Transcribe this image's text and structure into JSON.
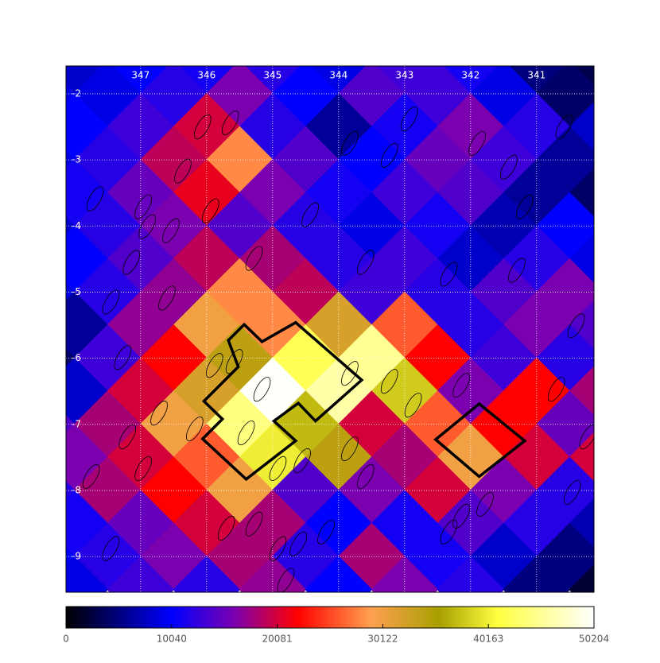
{
  "chart_data": {
    "type": "heatmap",
    "xlim": [
      348.13,
      340.13
    ],
    "ylim": [
      -1.58,
      -9.54
    ],
    "xticks": [
      347,
      346,
      345,
      344,
      343,
      342,
      341
    ],
    "yticks": [
      -2,
      -3,
      -4,
      -5,
      -6,
      -7,
      -8,
      -9
    ],
    "grid": true,
    "colormap": [
      {
        "value": 0,
        "color": "#000000"
      },
      {
        "value": 10040,
        "color": "#0000ff"
      },
      {
        "value": 16000,
        "color": "#7a00b0"
      },
      {
        "value": 22000,
        "color": "#ff0000"
      },
      {
        "value": 29000,
        "color": "#ffa050"
      },
      {
        "value": 35500,
        "color": "#a8a000"
      },
      {
        "value": 41000,
        "color": "#ffff40"
      },
      {
        "value": 50204,
        "color": "#ffffff"
      }
    ],
    "colorbar": {
      "lim": [
        0,
        50204
      ],
      "ticks": [
        0,
        10040,
        20081,
        30122,
        40163,
        50204
      ]
    },
    "cells": [
      {
        "lat": -1.5,
        "lon": [
          348,
          347,
          346,
          345,
          344,
          343,
          342,
          341,
          340
        ],
        "values": [
          8000,
          10000,
          11000,
          12000,
          9000,
          13000,
          11000,
          5000,
          3000
        ]
      },
      {
        "lat": -2,
        "lon": [
          348.5,
          347.5,
          346.5,
          345.5,
          344.5,
          343.5,
          342.5,
          341.5,
          340.5
        ],
        "values": [
          9000,
          9000,
          12000,
          16000,
          10000,
          14000,
          13000,
          9000,
          4000
        ]
      },
      {
        "lat": -2.5,
        "lon": [
          348,
          347,
          346,
          345,
          344,
          343,
          342,
          341,
          340
        ],
        "values": [
          10000,
          13000,
          20000,
          12000,
          6000,
          11000,
          16000,
          12000,
          8000
        ]
      },
      {
        "lat": -3,
        "lon": [
          348.5,
          347.5,
          346.5,
          345.5,
          344.5,
          343.5,
          342.5,
          341.5,
          340.5
        ],
        "values": [
          9000,
          12000,
          19000,
          28000,
          14000,
          10000,
          15000,
          13000,
          6000
        ]
      },
      {
        "lat": -3.5,
        "lon": [
          348,
          347,
          346,
          345,
          344,
          343,
          342,
          341,
          340
        ],
        "values": [
          11000,
          15000,
          21000,
          16000,
          11000,
          13000,
          14000,
          6000,
          4000
        ]
      },
      {
        "lat": -4,
        "lon": [
          348.5,
          347.5,
          346.5,
          345.5,
          344.5,
          343.5,
          342.5,
          341.5,
          340.5
        ],
        "values": [
          8000,
          12000,
          16000,
          14000,
          12000,
          9000,
          11000,
          7000,
          10000
        ]
      },
      {
        "lat": -4.5,
        "lon": [
          348,
          347,
          346,
          345,
          344,
          343,
          342,
          341,
          340
        ],
        "values": [
          10000,
          14000,
          19000,
          18000,
          12000,
          13000,
          8000,
          12000,
          9000
        ]
      },
      {
        "lat": -5,
        "lon": [
          348.5,
          347.5,
          346.5,
          345.5,
          344.5,
          343.5,
          342.5,
          341.5,
          340.5
        ],
        "values": [
          9000,
          12000,
          17000,
          28000,
          19000,
          13000,
          12000,
          14000,
          16000
        ]
      },
      {
        "lat": -5.5,
        "lon": [
          348,
          347,
          346,
          345,
          344,
          343,
          342,
          341,
          340
        ],
        "values": [
          6000,
          17000,
          30000,
          28000,
          32000,
          26000,
          12000,
          16000,
          14000
        ]
      },
      {
        "lat": -6,
        "lon": [
          348.5,
          347.5,
          346.5,
          345.5,
          344.5,
          343.5,
          342.5,
          341.5,
          340.5
        ],
        "values": [
          4000,
          13000,
          22000,
          34000,
          42000,
          45000,
          22000,
          13000,
          12000
        ]
      },
      {
        "lat": -6.5,
        "lon": [
          348,
          347,
          346,
          345,
          344,
          343,
          342,
          341,
          340
        ],
        "values": [
          8000,
          20000,
          32000,
          50000,
          46000,
          38000,
          16000,
          22000,
          18000
        ]
      },
      {
        "lat": -7,
        "lon": [
          348.5,
          347.5,
          346.5,
          345.5,
          344.5,
          343.5,
          342.5,
          341.5,
          340.5
        ],
        "values": [
          14000,
          18000,
          30000,
          44000,
          37000,
          20000,
          26000,
          22000,
          15000
        ]
      },
      {
        "lat": -7.5,
        "lon": [
          348,
          347,
          346,
          345,
          344,
          343,
          342,
          341,
          340
        ],
        "values": [
          16000,
          20000,
          26000,
          40000,
          34000,
          18000,
          30000,
          20000,
          20000
        ]
      },
      {
        "lat": -8,
        "lon": [
          348.5,
          347.5,
          346.5,
          345.5,
          344.5,
          343.5,
          342.5,
          341.5,
          340.5
        ],
        "values": [
          12000,
          18000,
          22000,
          30000,
          14000,
          16000,
          20000,
          16000,
          12000
        ]
      },
      {
        "lat": -8.5,
        "lon": [
          348,
          347,
          346,
          345,
          344,
          343,
          342,
          341,
          340
        ],
        "values": [
          11000,
          15000,
          20000,
          18000,
          10000,
          11000,
          14000,
          12000,
          7000
        ]
      },
      {
        "lat": -9,
        "lon": [
          348.5,
          347.5,
          346.5,
          345.5,
          344.5,
          343.5,
          342.5,
          341.5,
          340.5
        ],
        "values": [
          10000,
          12000,
          16000,
          18000,
          12000,
          18000,
          11000,
          8000,
          5000
        ]
      },
      {
        "lat": -9.5,
        "lon": [
          348,
          347,
          346,
          345,
          344,
          343,
          342,
          341,
          340
        ],
        "values": [
          9000,
          13000,
          12000,
          17000,
          10000,
          16000,
          12000,
          5000,
          2000
        ]
      }
    ],
    "contours": [
      {
        "lon": [
          345.67,
          345.43,
          345.16,
          344.65,
          343.65,
          344.35,
          344.61,
          344.98,
          344.65,
          345.4,
          346.06,
          345.76,
          346.04,
          345.52
        ],
        "lat": [
          -5.73,
          -5.49,
          -5.75,
          -5.46,
          -6.33,
          -6.95,
          -6.68,
          -6.95,
          -7.25,
          -7.83,
          -7.22,
          -6.92,
          -6.65,
          -6.13
        ]
      },
      {
        "lon": [
          341.87,
          341.18,
          341.87,
          342.53
        ],
        "lat": [
          -6.69,
          -7.25,
          -7.79,
          -7.23
        ]
      }
    ],
    "sources": {
      "lon": [
        346.06,
        345.64,
        346.36,
        346.96,
        347.69,
        346.9,
        346.54,
        347.14,
        345.94,
        345.28,
        343.83,
        343.23,
        342.93,
        341.9,
        341.42,
        341.18,
        340.58,
        344.43,
        343.59,
        342.33,
        341.3,
        347.45,
        347.27,
        346.6,
        345.88,
        345.58,
        345.16,
        343.83,
        343.23,
        342.14,
        340.7,
        340.4,
        347.2,
        346.72,
        346.18,
        345.4,
        344.92,
        344.55,
        343.83,
        343.59,
        342.87,
        346.96,
        347.75,
        341.78,
        342.14,
        340.46,
        340.22,
        345.7,
        345.28,
        344.92,
        344.61,
        344.19,
        342.33,
        347.45,
        344.8
      ],
      "lat": [
        -2.5,
        -2.44,
        -3.17,
        -3.71,
        -3.59,
        -4.01,
        -4.07,
        -4.55,
        -3.77,
        -4.49,
        -2.75,
        -2.93,
        -2.38,
        -2.75,
        -3.11,
        -3.71,
        -2.5,
        -3.83,
        -4.55,
        -4.73,
        -4.67,
        -5.15,
        -5.99,
        -5.09,
        -6.11,
        -6.05,
        -6.47,
        -6.23,
        -6.35,
        -6.41,
        -6.47,
        -5.51,
        -7.19,
        -6.83,
        -7.07,
        -7.13,
        -7.67,
        -7.55,
        -7.37,
        -7.79,
        -6.71,
        -7.67,
        -7.79,
        -8.21,
        -8.39,
        -8.03,
        -7.19,
        -8.57,
        -8.51,
        -8.88,
        -8.81,
        -8.63,
        -8.63,
        -8.88,
        -9.36
      ]
    }
  }
}
